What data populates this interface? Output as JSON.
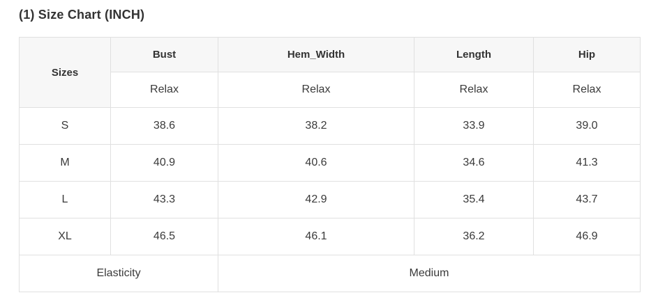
{
  "page": {
    "title": "(1) Size Chart (INCH)"
  },
  "colors": {
    "header_background": "#f7f7f7",
    "table_border": "#e0e0e0",
    "text": "#333333",
    "page_background": "#ffffff"
  },
  "chart_data": {
    "type": "table",
    "title": "(1) Size Chart (INCH)",
    "columns": [
      "Sizes",
      "Bust",
      "Hem_Width",
      "Length",
      "Hip"
    ],
    "fit_row": [
      "Relax",
      "Relax",
      "Relax",
      "Relax"
    ],
    "rows": [
      {
        "size": "S",
        "bust": "38.6",
        "hem_width": "38.2",
        "length": "33.9",
        "hip": "39.0"
      },
      {
        "size": "M",
        "bust": "40.9",
        "hem_width": "40.6",
        "length": "34.6",
        "hip": "41.3"
      },
      {
        "size": "L",
        "bust": "43.3",
        "hem_width": "42.9",
        "length": "35.4",
        "hip": "43.7"
      },
      {
        "size": "XL",
        "bust": "46.5",
        "hem_width": "46.1",
        "length": "36.2",
        "hip": "46.9"
      }
    ],
    "footer": {
      "label": "Elasticity",
      "value": "Medium"
    }
  }
}
